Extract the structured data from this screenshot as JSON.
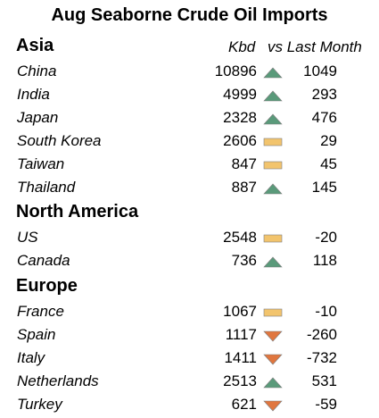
{
  "chart_data": {
    "type": "table",
    "title": "Aug Seaborne Crude Oil Imports",
    "columns": [
      "",
      "Kbd",
      "vs Last Month"
    ],
    "indicator_colors": {
      "up": "#5a9a7a",
      "flat": "#f2c46d",
      "down": "#e0763f"
    },
    "groups": [
      {
        "region": "Asia",
        "rows": [
          {
            "country": "China",
            "kbd": "10896",
            "trend": "up",
            "change": "1049"
          },
          {
            "country": "India",
            "kbd": "4999",
            "trend": "up",
            "change": "293"
          },
          {
            "country": "Japan",
            "kbd": "2328",
            "trend": "up",
            "change": "476"
          },
          {
            "country": "South Korea",
            "kbd": "2606",
            "trend": "flat",
            "change": "29"
          },
          {
            "country": "Taiwan",
            "kbd": "847",
            "trend": "flat",
            "change": "45"
          },
          {
            "country": "Thailand",
            "kbd": "887",
            "trend": "up",
            "change": "145"
          }
        ]
      },
      {
        "region": "North America",
        "rows": [
          {
            "country": "US",
            "kbd": "2548",
            "trend": "flat",
            "change": "-20"
          },
          {
            "country": "Canada",
            "kbd": "736",
            "trend": "up",
            "change": "118"
          }
        ]
      },
      {
        "region": "Europe",
        "rows": [
          {
            "country": "France",
            "kbd": "1067",
            "trend": "flat",
            "change": "-10"
          },
          {
            "country": "Spain",
            "kbd": "1117",
            "trend": "down",
            "change": "-260"
          },
          {
            "country": "Italy",
            "kbd": "1411",
            "trend": "down",
            "change": "-732"
          },
          {
            "country": "Netherlands",
            "kbd": "2513",
            "trend": "up",
            "change": "531"
          },
          {
            "country": "Turkey",
            "kbd": "621",
            "trend": "down",
            "change": "-59"
          }
        ]
      }
    ]
  }
}
